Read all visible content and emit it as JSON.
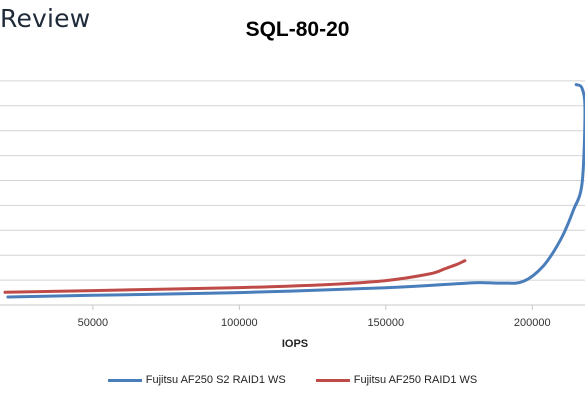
{
  "brand": {
    "text": "Review"
  },
  "chart_data": {
    "type": "line",
    "title": "SQL-80-20",
    "xlabel": "IOPS",
    "ylabel": "",
    "xlim": [
      20000,
      218000
    ],
    "ylim": [
      0,
      100
    ],
    "x_ticks": [
      50000,
      100000,
      150000,
      200000
    ],
    "y_gridlines": [
      10,
      20,
      30,
      40,
      50,
      60,
      70,
      80,
      90
    ],
    "grid": "horizontal",
    "legend_position": "bottom",
    "colors": {
      "series_1": "#4a7ebb",
      "series_2": "#be4b48"
    },
    "series": [
      {
        "name": "Fujitsu AF250 S2 RAID1 WS",
        "color": "#4a7ebb",
        "x": [
          21000,
          50000,
          100000,
          150000,
          175000,
          182000,
          190000,
          197000,
          204000,
          210000,
          214000,
          217000,
          218000,
          217000,
          215000
        ],
        "y": [
          3.2,
          3.9,
          5.0,
          6.9,
          8.6,
          9.0,
          8.8,
          9.5,
          16.0,
          27.0,
          38.0,
          49.0,
          78.0,
          87.0,
          88.5
        ]
      },
      {
        "name": "Fujitsu AF250 RAID1 WS",
        "color": "#be4b48",
        "x": [
          20000,
          50000,
          100000,
          130000,
          150000,
          165000,
          170000,
          174000,
          177000
        ],
        "y": [
          5.1,
          5.8,
          7.0,
          8.2,
          9.8,
          12.5,
          14.5,
          16.2,
          17.8
        ]
      }
    ]
  }
}
